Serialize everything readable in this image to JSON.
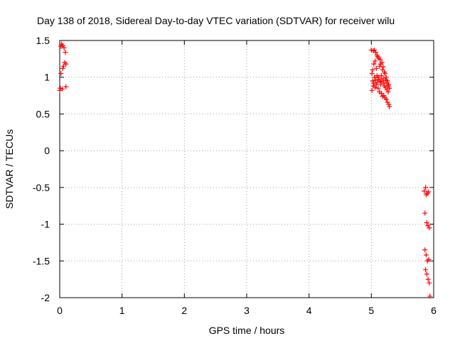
{
  "chart_data": {
    "type": "scatter",
    "title": "Day 138 of 2018, Sidereal Day-to-day VTEC variation (SDTVAR) for receiver wilu",
    "xlabel": "GPS time / hours",
    "ylabel": "SDTVAR / TECUs",
    "xlim": [
      0,
      6
    ],
    "ylim": [
      -2,
      1.5
    ],
    "xticks": [
      "0",
      "1",
      "2",
      "3",
      "4",
      "5",
      "6"
    ],
    "yticks": [
      "1.5",
      "1",
      "0.5",
      "0",
      "-0.5",
      "-1",
      "-1.5",
      "-2"
    ],
    "grid": true,
    "marker": "+",
    "color": "#ff0000",
    "series": [
      {
        "points": [
          [
            0.0,
            0.82
          ],
          [
            0.01,
            0.85
          ],
          [
            0.02,
            1.05
          ],
          [
            0.02,
            1.42
          ],
          [
            0.03,
            1.45
          ],
          [
            0.04,
            0.84
          ],
          [
            0.05,
            1.43
          ],
          [
            0.05,
            1.12
          ],
          [
            0.06,
            1.15
          ],
          [
            0.07,
            1.4
          ],
          [
            0.08,
            1.2
          ],
          [
            0.09,
            1.34
          ],
          [
            0.1,
            0.87
          ],
          [
            0.1,
            1.18
          ],
          [
            5.0,
            1.37
          ],
          [
            5.01,
            1.05
          ],
          [
            5.01,
            0.82
          ],
          [
            5.02,
            1.1
          ],
          [
            5.02,
            0.95
          ],
          [
            5.03,
            1.36
          ],
          [
            5.03,
            0.88
          ],
          [
            5.04,
            1.18
          ],
          [
            5.04,
            0.92
          ],
          [
            5.05,
            1.37
          ],
          [
            5.05,
            1.0
          ],
          [
            5.06,
            1.22
          ],
          [
            5.06,
            0.86
          ],
          [
            5.07,
            1.34
          ],
          [
            5.07,
            0.96
          ],
          [
            5.08,
            1.12
          ],
          [
            5.08,
            0.9
          ],
          [
            5.09,
            1.3
          ],
          [
            5.09,
            1.02
          ],
          [
            5.1,
            0.93
          ],
          [
            5.1,
            1.28
          ],
          [
            5.11,
            0.85
          ],
          [
            5.11,
            1.0
          ],
          [
            5.12,
            1.26
          ],
          [
            5.12,
            0.97
          ],
          [
            5.13,
            1.15
          ],
          [
            5.13,
            0.8
          ],
          [
            5.14,
            1.24
          ],
          [
            5.14,
            0.95
          ],
          [
            5.15,
            0.9
          ],
          [
            5.15,
            1.18
          ],
          [
            5.16,
            0.78
          ],
          [
            5.16,
            1.02
          ],
          [
            5.17,
            1.2
          ],
          [
            5.17,
            0.94
          ],
          [
            5.18,
            1.1
          ],
          [
            5.18,
            0.74
          ],
          [
            5.19,
            0.98
          ],
          [
            5.19,
            1.14
          ],
          [
            5.2,
            0.92
          ],
          [
            5.2,
            0.75
          ],
          [
            5.21,
            1.07
          ],
          [
            5.21,
            0.88
          ],
          [
            5.22,
            1.05
          ],
          [
            5.22,
            0.72
          ],
          [
            5.23,
            0.96
          ],
          [
            5.23,
            0.86
          ],
          [
            5.24,
            1.0
          ],
          [
            5.24,
            0.7
          ],
          [
            5.25,
            0.92
          ],
          [
            5.25,
            0.83
          ],
          [
            5.26,
            0.95
          ],
          [
            5.26,
            0.66
          ],
          [
            5.27,
            0.88
          ],
          [
            5.27,
            0.8
          ],
          [
            5.28,
            0.9
          ],
          [
            5.28,
            0.63
          ],
          [
            5.29,
            0.85
          ],
          [
            5.29,
            0.6
          ],
          [
            5.85,
            -0.55
          ],
          [
            5.86,
            -0.85
          ],
          [
            5.86,
            -1.35
          ],
          [
            5.87,
            -0.5
          ],
          [
            5.87,
            -1.62
          ],
          [
            5.88,
            -0.6
          ],
          [
            5.88,
            -1.42
          ],
          [
            5.89,
            -0.98
          ],
          [
            5.89,
            -1.68
          ],
          [
            5.9,
            -0.58
          ],
          [
            5.9,
            -1.5
          ],
          [
            5.91,
            -1.02
          ],
          [
            5.91,
            -1.75
          ],
          [
            5.92,
            -0.56
          ],
          [
            5.92,
            -1.48
          ],
          [
            5.93,
            -1.8
          ],
          [
            5.93,
            -1.05
          ],
          [
            5.94,
            -1.98
          ]
        ]
      }
    ]
  }
}
